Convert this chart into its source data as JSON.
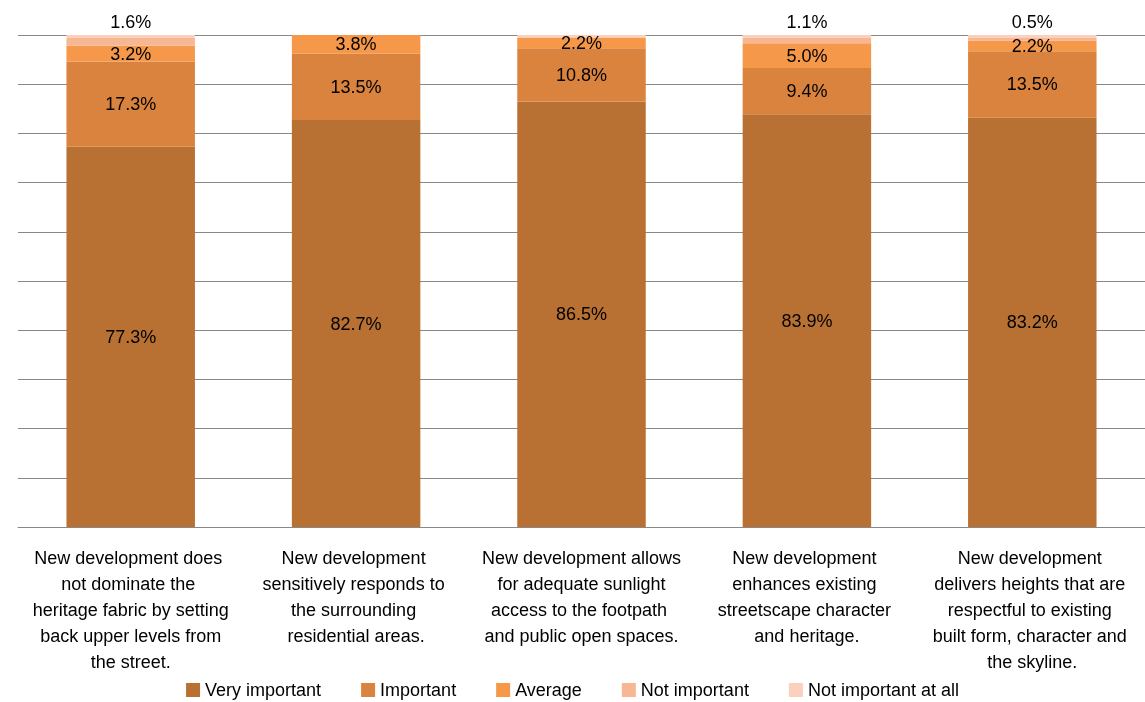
{
  "chart_data": {
    "type": "bar",
    "stacked": true,
    "categories": [
      "New development does not dominate the heritage fabric by setting back upper levels from the street.",
      "New development sensitively responds to the surrounding residential areas.",
      "New development allows for adequate sunlight access to the footpath and public open spaces.",
      "New development enhances existing streetscape character and heritage.",
      "New development delivers heights that are respectful to existing built form, character and the skyline."
    ],
    "series": [
      {
        "name": "Very important",
        "color": "#b87133",
        "values": [
          77.3,
          82.7,
          86.5,
          83.9,
          83.2
        ],
        "value_labels": [
          "77.3%",
          "82.7%",
          "86.5%",
          "83.9%",
          "83.2%"
        ]
      },
      {
        "name": "Important",
        "color": "#d9833e",
        "values": [
          17.3,
          13.5,
          10.8,
          9.4,
          13.5
        ],
        "value_labels": [
          "17.3%",
          "13.5%",
          "10.8%",
          "9.4%",
          "13.5%"
        ]
      },
      {
        "name": "Average",
        "color": "#f59849",
        "values": [
          3.2,
          3.8,
          2.2,
          5.0,
          2.2
        ],
        "value_labels": [
          "3.2%",
          "3.8%",
          "2.2%",
          "5.0%",
          "2.2%"
        ]
      },
      {
        "name": "Not important",
        "color": "#f8b793",
        "values": [
          1.6,
          0,
          0,
          1.1,
          0.5
        ],
        "value_labels": [
          "1.6%",
          null,
          null,
          "1.1%",
          "0.5%"
        ]
      },
      {
        "name": "Not important at all",
        "color": "#fbd0bd",
        "values": [
          0.6,
          0,
          0.5,
          0.6,
          0.6
        ],
        "value_labels": [
          null,
          null,
          null,
          null,
          null
        ]
      }
    ],
    "ylim": [
      0,
      100
    ],
    "yticks": [
      {
        "value": 0,
        "label": null
      },
      {
        "value": 10,
        "label": null
      },
      {
        "value": 20,
        "label": null
      },
      {
        "value": 30,
        "label": null
      },
      {
        "value": 40,
        "label": null
      },
      {
        "value": 50,
        "label": null
      },
      {
        "value": 60,
        "label": null
      },
      {
        "value": 70,
        "label": null
      },
      {
        "value": 80,
        "label": null
      },
      {
        "value": 90,
        "label": null
      },
      {
        "value": 100,
        "label": null
      }
    ],
    "grid": "y",
    "legend": "bottom",
    "tick_labels": "x"
  }
}
